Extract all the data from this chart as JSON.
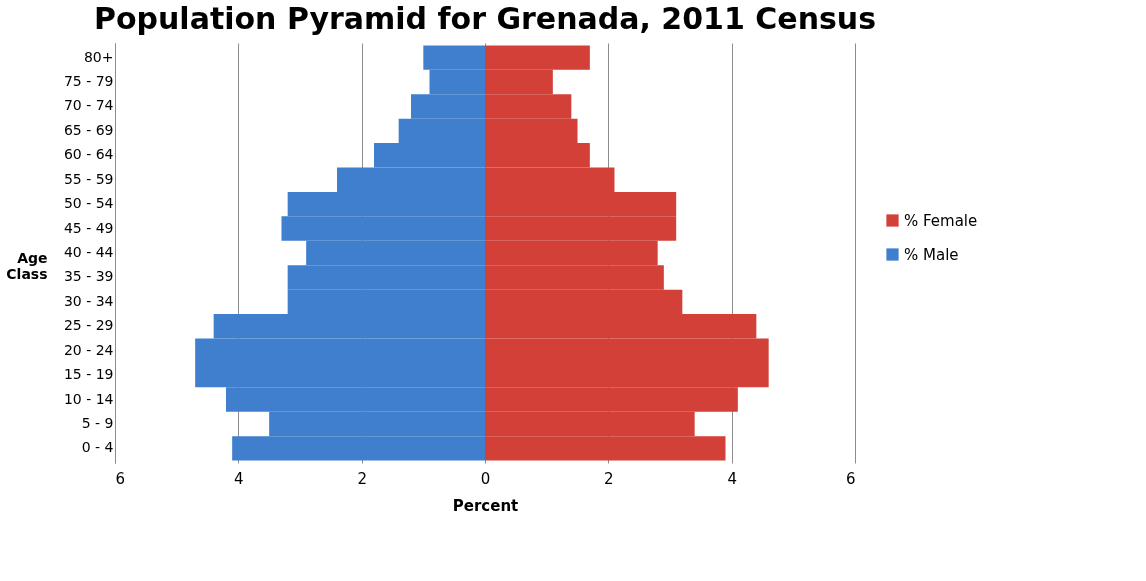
{
  "chart_data": {
    "type": "bar",
    "orientation": "horizontal",
    "title": "Population Pyramid for Grenada, 2011 Census",
    "xlabel": "Percent",
    "ylabel": "Age Class",
    "categories": [
      "80+",
      "75 - 79",
      "70 - 74",
      "65 - 69",
      "60 - 64",
      "55 - 59",
      "50 - 54",
      "45 - 49",
      "40 - 44",
      "35 - 39",
      "30 - 34",
      "25 - 29",
      "20 - 24",
      "15 - 19",
      "10 - 14",
      "5 - 9",
      "0 - 4"
    ],
    "series": [
      {
        "name": "% Female",
        "color": "#d24038",
        "values": [
          1.7,
          1.1,
          1.4,
          1.5,
          1.7,
          2.1,
          3.1,
          3.1,
          2.8,
          2.9,
          3.2,
          4.4,
          4.6,
          4.6,
          4.1,
          3.4,
          3.9
        ]
      },
      {
        "name": "% Male",
        "color": "#3f7fcd",
        "values": [
          -1.0,
          -0.9,
          -1.2,
          -1.4,
          -1.8,
          -2.4,
          -3.2,
          -3.3,
          -2.9,
          -3.2,
          -3.2,
          -4.4,
          -4.7,
          -4.7,
          -4.2,
          -3.5,
          -4.1
        ]
      }
    ],
    "xlim": [
      -6,
      6
    ],
    "xticks": [
      {
        "value": -6,
        "label": "6"
      },
      {
        "value": -4,
        "label": "4"
      },
      {
        "value": -2,
        "label": "2"
      },
      0,
      2,
      4,
      6
    ],
    "grid": "x",
    "legend": "right",
    "stacked": true
  }
}
